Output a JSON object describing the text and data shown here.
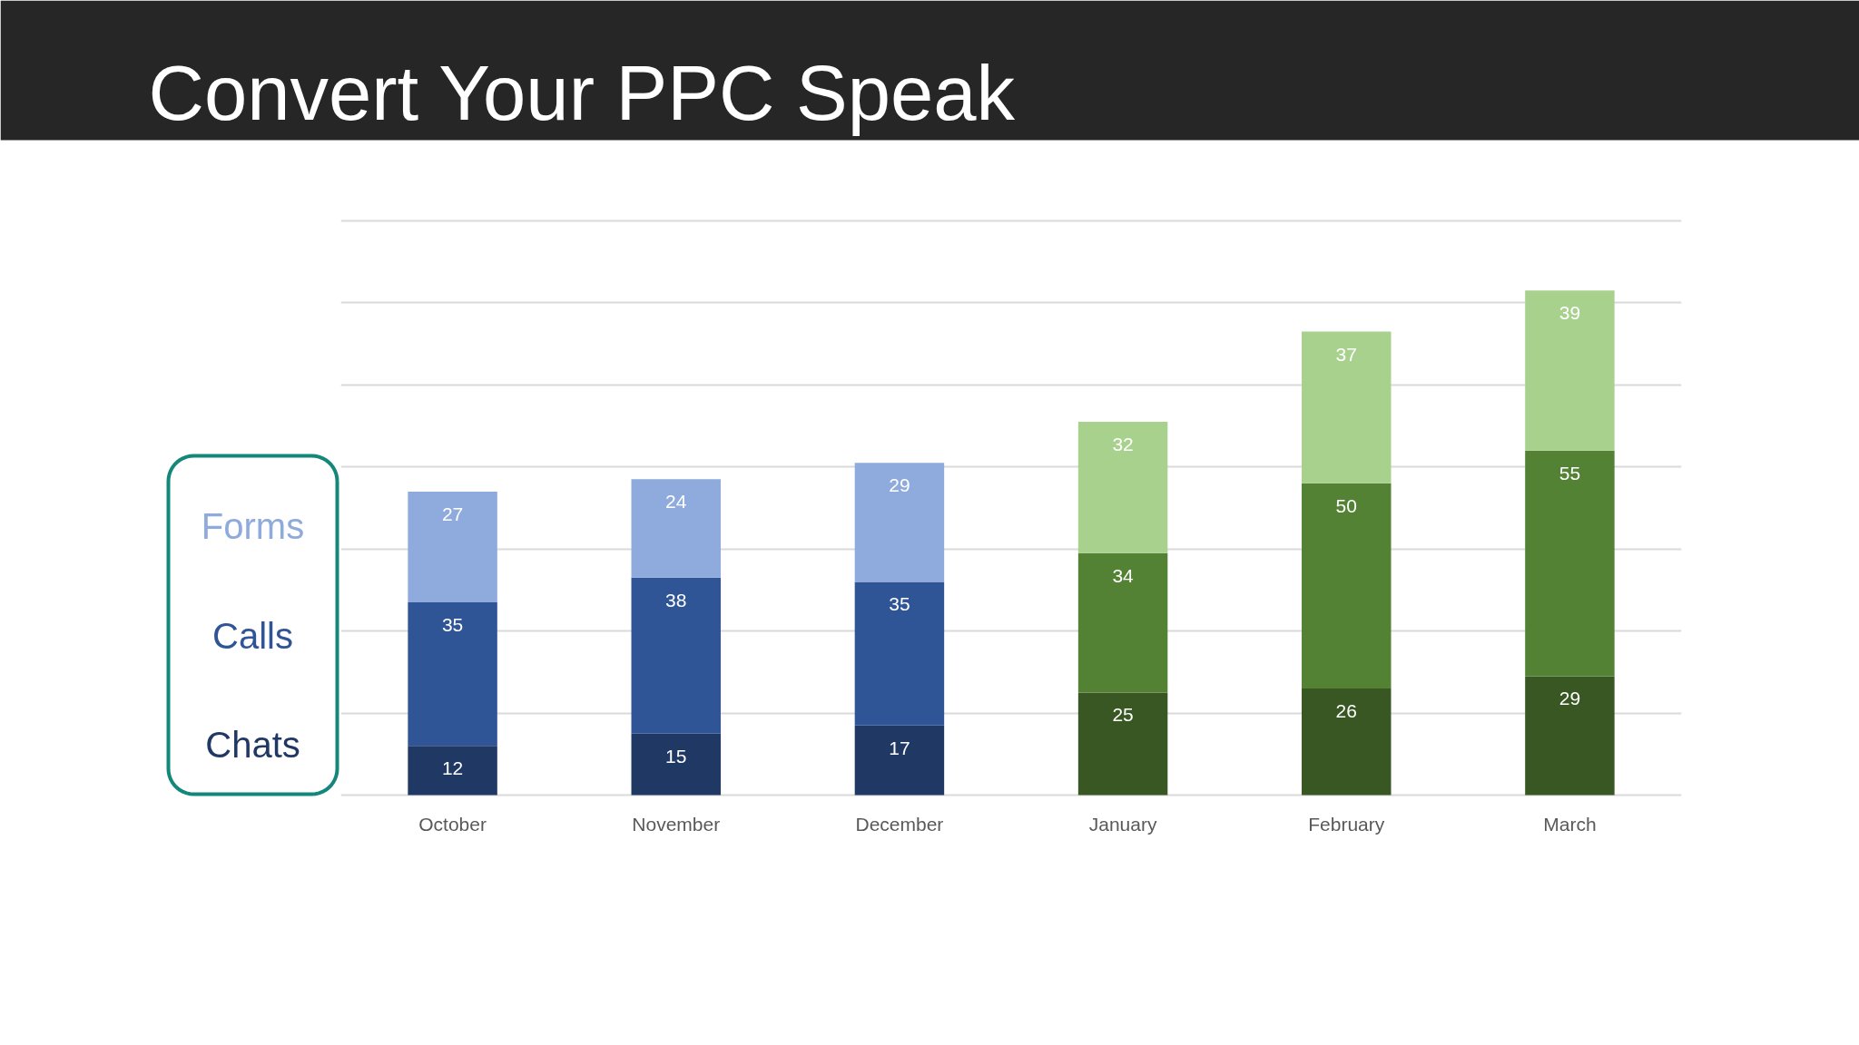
{
  "chart_data": {
    "type": "bar",
    "title": "Convert Your PPC Speak",
    "categories": [
      "October",
      "November",
      "December",
      "January",
      "February",
      "March"
    ],
    "stacked": true,
    "series": [
      {
        "name": "Chats",
        "colors": [
          "#203864",
          "#203864",
          "#203864",
          "#385723",
          "#385723",
          "#385723"
        ],
        "values": [
          12,
          15,
          17,
          25,
          26,
          29
        ]
      },
      {
        "name": "Calls",
        "colors": [
          "#2f5597",
          "#2f5597",
          "#2f5597",
          "#548235",
          "#548235",
          "#548235"
        ],
        "values": [
          35,
          38,
          35,
          34,
          50,
          55
        ]
      },
      {
        "name": "Forms",
        "colors": [
          "#8faadc",
          "#8faadc",
          "#8faadc",
          "#a9d18e",
          "#a9d18e",
          "#a9d18e"
        ],
        "values": [
          27,
          24,
          29,
          32,
          37,
          39
        ]
      }
    ],
    "ylim": [
      0,
      140
    ],
    "yticks": [
      {
        "value": 0,
        "label": null
      },
      {
        "value": 20,
        "label": null
      },
      {
        "value": 40,
        "label": null
      },
      {
        "value": 60,
        "label": null
      },
      {
        "value": 80,
        "label": null
      },
      {
        "value": 100,
        "label": null
      },
      {
        "value": 120,
        "label": null
      },
      {
        "value": 140,
        "label": null
      }
    ],
    "tick_labels": "x",
    "grid": "y",
    "legend": "left",
    "data_labels": true
  }
}
